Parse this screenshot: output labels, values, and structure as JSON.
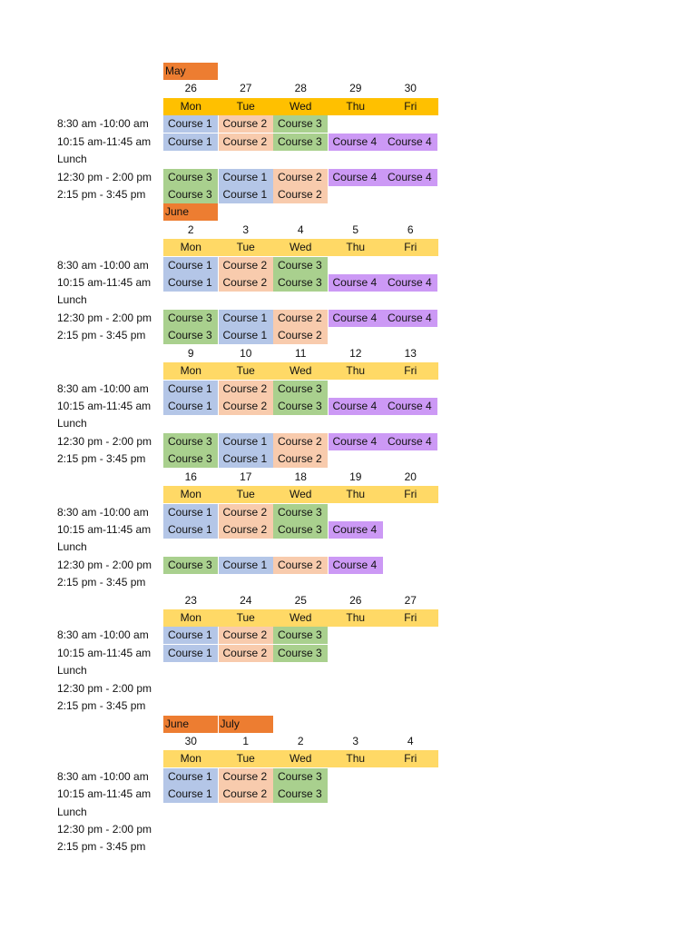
{
  "schedule": {
    "month_color": "#ed7d31",
    "weeks": [
      {
        "months": [
          "May"
        ],
        "dates": [
          26,
          27,
          28,
          29,
          30
        ],
        "days": [
          "Mon",
          "Tue",
          "Wed",
          "Thu",
          "Fri"
        ],
        "header_color": "#ffc000",
        "slots": [
          {
            "time": "8:30 am -10:00 am",
            "cells": [
              {
                "label": "Course 1",
                "color": "#b4c6e7"
              },
              {
                "label": "Course 2",
                "color": "#f8cbad"
              },
              {
                "label": "Course 3",
                "color": "#a9d08e"
              },
              null,
              null
            ]
          },
          {
            "time": "10:15 am-11:45 am",
            "cells": [
              {
                "label": "Course 1",
                "color": "#b4c6e7"
              },
              {
                "label": "Course 2",
                "color": "#f8cbad"
              },
              {
                "label": "Course 3",
                "color": "#a9d08e"
              },
              {
                "label": "Course 4",
                "color": "#cc99f5"
              },
              {
                "label": "Course 4",
                "color": "#cc99f5"
              }
            ]
          },
          {
            "time": "Lunch"
          },
          {
            "time": "12:30 pm - 2:00 pm",
            "cells": [
              {
                "label": "Course 3",
                "color": "#a9d08e"
              },
              {
                "label": "Course 1",
                "color": "#b4c6e7"
              },
              {
                "label": "Course 2",
                "color": "#f8cbad"
              },
              {
                "label": "Course 4",
                "color": "#cc99f5"
              },
              {
                "label": "Course 4",
                "color": "#cc99f5"
              }
            ]
          },
          {
            "time": "2:15 pm - 3:45 pm",
            "cells": [
              {
                "label": "Course 3",
                "color": "#a9d08e"
              },
              {
                "label": "Course 1",
                "color": "#b4c6e7"
              },
              {
                "label": "Course 2",
                "color": "#f8cbad"
              },
              null,
              null
            ]
          }
        ]
      },
      {
        "months": [
          "June"
        ],
        "dates": [
          2,
          3,
          4,
          5,
          6
        ],
        "days": [
          "Mon",
          "Tue",
          "Wed",
          "Thu",
          "Fri"
        ],
        "header_color": "#ffd966",
        "slots": [
          {
            "time": "8:30 am -10:00 am",
            "cells": [
              {
                "label": "Course 1",
                "color": "#b4c6e7"
              },
              {
                "label": "Course 2",
                "color": "#f8cbad"
              },
              {
                "label": "Course 3",
                "color": "#a9d08e"
              },
              null,
              null
            ]
          },
          {
            "time": "10:15 am-11:45 am",
            "cells": [
              {
                "label": "Course 1",
                "color": "#b4c6e7"
              },
              {
                "label": "Course 2",
                "color": "#f8cbad"
              },
              {
                "label": "Course 3",
                "color": "#a9d08e"
              },
              {
                "label": "Course 4",
                "color": "#cc99f5"
              },
              {
                "label": "Course 4",
                "color": "#cc99f5"
              }
            ]
          },
          {
            "time": "Lunch"
          },
          {
            "time": "12:30 pm - 2:00 pm",
            "cells": [
              {
                "label": "Course 3",
                "color": "#a9d08e"
              },
              {
                "label": "Course 1",
                "color": "#b4c6e7"
              },
              {
                "label": "Course 2",
                "color": "#f8cbad"
              },
              {
                "label": "Course 4",
                "color": "#cc99f5"
              },
              {
                "label": "Course 4",
                "color": "#cc99f5"
              }
            ]
          },
          {
            "time": "2:15 pm - 3:45 pm",
            "cells": [
              {
                "label": "Course 3",
                "color": "#a9d08e"
              },
              {
                "label": "Course 1",
                "color": "#b4c6e7"
              },
              {
                "label": "Course 2",
                "color": "#f8cbad"
              },
              null,
              null
            ]
          }
        ]
      },
      {
        "dates": [
          9,
          10,
          11,
          12,
          13
        ],
        "days": [
          "Mon",
          "Tue",
          "Wed",
          "Thu",
          "Fri"
        ],
        "header_color": "#ffd966",
        "slots": [
          {
            "time": "8:30 am -10:00 am",
            "cells": [
              {
                "label": "Course 1",
                "color": "#b4c6e7"
              },
              {
                "label": "Course 2",
                "color": "#f8cbad"
              },
              {
                "label": "Course 3",
                "color": "#a9d08e"
              },
              null,
              null
            ]
          },
          {
            "time": "10:15 am-11:45 am",
            "cells": [
              {
                "label": "Course 1",
                "color": "#b4c6e7"
              },
              {
                "label": "Course 2",
                "color": "#f8cbad"
              },
              {
                "label": "Course 3",
                "color": "#a9d08e"
              },
              {
                "label": "Course 4",
                "color": "#cc99f5"
              },
              {
                "label": "Course 4",
                "color": "#cc99f5"
              }
            ]
          },
          {
            "time": "Lunch"
          },
          {
            "time": "12:30 pm - 2:00 pm",
            "cells": [
              {
                "label": "Course 3",
                "color": "#a9d08e"
              },
              {
                "label": "Course 1",
                "color": "#b4c6e7"
              },
              {
                "label": "Course 2",
                "color": "#f8cbad"
              },
              {
                "label": "Course 4",
                "color": "#cc99f5"
              },
              {
                "label": "Course 4",
                "color": "#cc99f5"
              }
            ]
          },
          {
            "time": "2:15 pm - 3:45 pm",
            "cells": [
              {
                "label": "Course 3",
                "color": "#a9d08e"
              },
              {
                "label": "Course 1",
                "color": "#b4c6e7"
              },
              {
                "label": "Course 2",
                "color": "#f8cbad"
              },
              null,
              null
            ]
          }
        ]
      },
      {
        "dates": [
          16,
          17,
          18,
          19,
          20
        ],
        "days": [
          "Mon",
          "Tue",
          "Wed",
          "Thu",
          "Fri"
        ],
        "header_color": "#ffd966",
        "slots": [
          {
            "time": "8:30 am -10:00 am",
            "cells": [
              {
                "label": "Course 1",
                "color": "#b4c6e7"
              },
              {
                "label": "Course 2",
                "color": "#f8cbad"
              },
              {
                "label": "Course 3",
                "color": "#a9d08e"
              },
              null,
              null
            ]
          },
          {
            "time": "10:15 am-11:45 am",
            "cells": [
              {
                "label": "Course 1",
                "color": "#b4c6e7"
              },
              {
                "label": "Course 2",
                "color": "#f8cbad"
              },
              {
                "label": "Course 3",
                "color": "#a9d08e"
              },
              {
                "label": "Course 4",
                "color": "#cc99f5"
              },
              null
            ]
          },
          {
            "time": "Lunch"
          },
          {
            "time": "12:30 pm - 2:00 pm",
            "cells": [
              {
                "label": "Course 3",
                "color": "#a9d08e"
              },
              {
                "label": "Course 1",
                "color": "#b4c6e7"
              },
              {
                "label": "Course 2",
                "color": "#f8cbad"
              },
              {
                "label": "Course 4",
                "color": "#cc99f5"
              },
              null
            ]
          },
          {
            "time": "2:15 pm - 3:45 pm"
          }
        ]
      },
      {
        "dates": [
          23,
          24,
          25,
          26,
          27
        ],
        "days": [
          "Mon",
          "Tue",
          "Wed",
          "Thu",
          "Fri"
        ],
        "header_color": "#ffd966",
        "slots": [
          {
            "time": "8:30 am -10:00 am",
            "cells": [
              {
                "label": "Course 1",
                "color": "#b4c6e7"
              },
              {
                "label": "Course 2",
                "color": "#f8cbad"
              },
              {
                "label": "Course 3",
                "color": "#a9d08e"
              },
              null,
              null
            ]
          },
          {
            "time": "10:15 am-11:45 am",
            "cells": [
              {
                "label": "Course 1",
                "color": "#b4c6e7"
              },
              {
                "label": "Course 2",
                "color": "#f8cbad"
              },
              {
                "label": "Course 3",
                "color": "#a9d08e"
              },
              null,
              null
            ]
          },
          {
            "time": "Lunch"
          },
          {
            "time": "12:30 pm - 2:00 pm"
          },
          {
            "time": "2:15 pm - 3:45 pm"
          }
        ]
      },
      {
        "months": [
          "June",
          "July"
        ],
        "dates": [
          30,
          1,
          2,
          3,
          4
        ],
        "days": [
          "Mon",
          "Tue",
          "Wed",
          "Thu",
          "Fri"
        ],
        "header_color": "#ffd966",
        "slots": [
          {
            "time": "8:30 am -10:00 am",
            "cells": [
              {
                "label": "Course 1",
                "color": "#b4c6e7"
              },
              {
                "label": "Course 2",
                "color": "#f8cbad"
              },
              {
                "label": "Course 3",
                "color": "#a9d08e"
              },
              null,
              null
            ]
          },
          {
            "time": "10:15 am-11:45 am",
            "cells": [
              {
                "label": "Course 1",
                "color": "#b4c6e7"
              },
              {
                "label": "Course 2",
                "color": "#f8cbad"
              },
              {
                "label": "Course 3",
                "color": "#a9d08e"
              },
              null,
              null
            ]
          },
          {
            "time": "Lunch"
          },
          {
            "time": "12:30 pm - 2:00 pm"
          },
          {
            "time": "2:15 pm - 3:45 pm"
          }
        ]
      }
    ]
  }
}
